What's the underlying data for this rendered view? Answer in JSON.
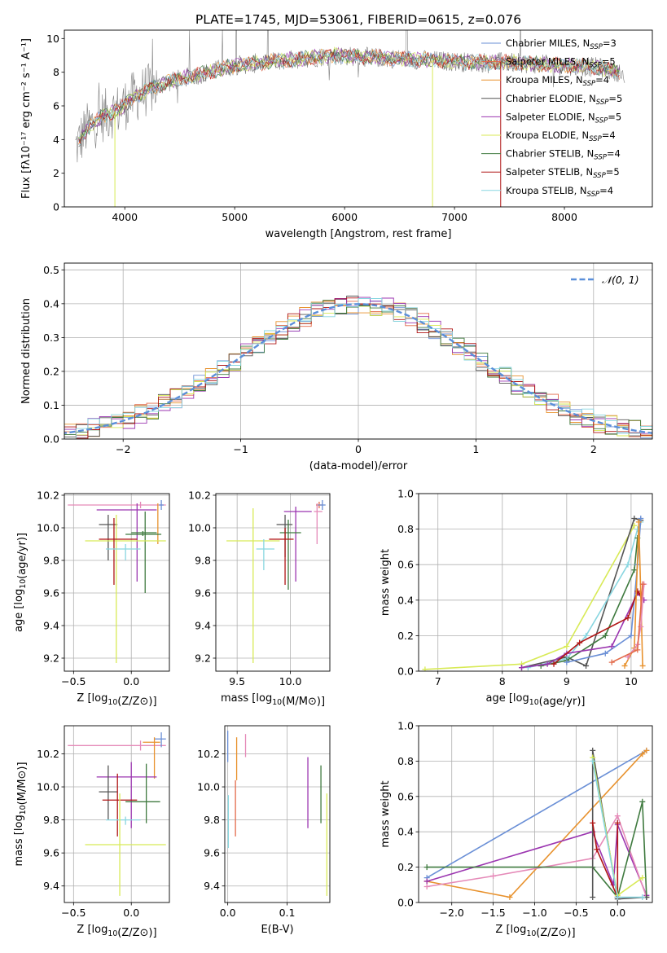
{
  "figure_title": "PLATE=1745, MJD=53061, FIBERID=0615, z=0.076",
  "colors": {
    "chabrier_miles": "#6a8fd6",
    "salpeter_miles": "#e36b4b",
    "kroupa_miles": "#e8922e",
    "chabrier_elodie": "#555555",
    "salpeter_elodie": "#9b35b0",
    "kroupa_elodie": "#d8ea56",
    "chabrier_stelib": "#3f7a3f",
    "salpeter_stelib": "#b01515",
    "kroupa_stelib": "#88d6e0",
    "data": "#7f7f7f",
    "pink": "#e58ab8",
    "gaussian": "#5b8fd9"
  },
  "chart_data": [
    {
      "type": "line",
      "xlabel": "wavelength [Angstrom, rest frame]",
      "ylabel": "Flux [fλ10⁻¹⁷ erg cm⁻² s⁻¹ A⁻¹]",
      "xlim": [
        3450,
        8800
      ],
      "ylim": [
        0,
        10.5
      ],
      "xticks": [
        "4000",
        "5000",
        "6000",
        "7000",
        "8000"
      ],
      "yticks": [
        "0",
        "2",
        "4",
        "6",
        "8",
        "10"
      ],
      "grid": false,
      "legend_position": "right",
      "legend": [
        {
          "label": "Chabrier MILES, N",
          "sub": "SSP",
          "tail": "=3"
        },
        {
          "label": "Salpeter MILES, N",
          "sub": "SSP",
          "tail": "=5"
        },
        {
          "label": "Kroupa MILES, N",
          "sub": "SSP",
          "tail": "=4"
        },
        {
          "label": "Chabrier ELODIE, N",
          "sub": "SSP",
          "tail": "=5"
        },
        {
          "label": "Salpeter ELODIE, N",
          "sub": "SSP",
          "tail": "=5"
        },
        {
          "label": "Kroupa ELODIE, N",
          "sub": "SSP",
          "tail": "=4"
        },
        {
          "label": "Chabrier STELIB, N",
          "sub": "SSP",
          "tail": "=4"
        },
        {
          "label": "Salpeter STELIB, N",
          "sub": "SSP",
          "tail": "=5"
        },
        {
          "label": "Kroupa STELIB, N",
          "sub": "SSP",
          "tail": "=4"
        }
      ],
      "continuum": {
        "x": [
          3550,
          3650,
          3800,
          3950,
          4100,
          4300,
          4500,
          4700,
          5000,
          5300,
          5600,
          5900,
          6200,
          6500,
          6800,
          7100,
          7400,
          7700,
          8000,
          8300,
          8500,
          8550
        ],
        "y": [
          3.5,
          4.6,
          5.4,
          5.8,
          6.6,
          7.2,
          7.6,
          7.9,
          8.4,
          8.6,
          8.8,
          9.0,
          8.9,
          8.8,
          8.7,
          8.6,
          8.6,
          8.5,
          8.4,
          8.3,
          8.0,
          7.3
        ]
      }
    },
    {
      "type": "line",
      "xlabel": "(data-model)/error",
      "ylabel": "Normed distribution",
      "xlim": [
        -2.5,
        2.5
      ],
      "ylim": [
        0,
        0.52
      ],
      "xticks": [
        "−2",
        "−1",
        "0",
        "1",
        "2"
      ],
      "yticks": [
        "0.0",
        "0.1",
        "0.2",
        "0.3",
        "0.4",
        "0.5"
      ],
      "grid": true,
      "legend_position": "top-right",
      "gaussian_label": "𝒩(0, 1)",
      "bin_width": 0.1
    },
    {
      "type": "scatter",
      "xlabel": "Z [log10(Z/Z⊙)]",
      "ylabel": "age  [log10(age/yr)]",
      "xlim": [
        -0.58,
        0.33
      ],
      "ylim": [
        9.12,
        10.21
      ],
      "xticks": [
        "−0.5",
        "0.0"
      ],
      "yticks": [
        "9.2",
        "9.4",
        "9.6",
        "9.8",
        "10.0",
        "10.2"
      ],
      "grid": true
    },
    {
      "type": "scatter",
      "xlabel": "mass [log10(M/M⊙)]",
      "ylabel": "",
      "xlim": [
        9.3,
        10.37
      ],
      "ylim": [
        9.12,
        10.21
      ],
      "xticks": [
        "9.5",
        "10.0"
      ],
      "yticks": [
        "9.2",
        "9.4",
        "9.6",
        "9.8",
        "10.0",
        "10.2"
      ],
      "grid": true
    },
    {
      "type": "line",
      "xlabel": "age  [log10(age/yr)]",
      "ylabel": "mass weight",
      "xlim": [
        6.7,
        10.33
      ],
      "ylim": [
        0,
        1.0
      ],
      "xticks": [
        "7",
        "8",
        "9",
        "10"
      ],
      "yticks": [
        "0.0",
        "0.2",
        "0.4",
        "0.6",
        "0.8",
        "1.0"
      ],
      "grid": true
    },
    {
      "type": "scatter",
      "xlabel": "Z [log10(Z/Z⊙)]",
      "ylabel": "mass [log10(M/M⊙)]",
      "xlim": [
        -0.58,
        0.33
      ],
      "ylim": [
        9.3,
        10.37
      ],
      "xticks": [
        "−0.5",
        "0.0"
      ],
      "yticks": [
        "9.4",
        "9.6",
        "9.8",
        "10.0",
        "10.2"
      ],
      "grid": true
    },
    {
      "type": "scatter",
      "xlabel": "E(B-V)",
      "ylabel": "",
      "xlim": [
        -0.005,
        0.172
      ],
      "ylim": [
        9.3,
        10.37
      ],
      "xticks": [
        "0.0",
        "0.1"
      ],
      "yticks": [
        "9.4",
        "9.6",
        "9.8",
        "10.0",
        "10.2"
      ],
      "grid": true
    },
    {
      "type": "line",
      "xlabel": "Z [log10(Z/Z⊙)]",
      "ylabel": "mass weight",
      "xlim": [
        -2.4,
        0.42
      ],
      "ylim": [
        0,
        1.0
      ],
      "xticks": [
        "−2.0",
        "−1.5",
        "−1.0",
        "−0.5",
        "0.0"
      ],
      "yticks": [
        "0.0",
        "0.2",
        "0.4",
        "0.6",
        "0.8",
        "1.0"
      ],
      "grid": true
    }
  ],
  "errorbars_Z_age": [
    {
      "c": "pink",
      "x": 0.08,
      "xl": -0.55,
      "xh": 0.3,
      "y": 10.14,
      "yl": 10.12,
      "yh": 10.16
    },
    {
      "c": "salpeter_elodie",
      "x": 0.05,
      "xl": -0.3,
      "xh": 0.22,
      "y": 10.11,
      "yl": 9.67,
      "yh": 10.15
    },
    {
      "c": "kroupa_miles",
      "x": 0.23,
      "xl": 0.23,
      "xh": 0.23,
      "y": 10.12,
      "yl": 9.9,
      "yh": 10.15
    },
    {
      "c": "chabrier_miles",
      "x": 0.26,
      "xl": 0.24,
      "xh": 0.28,
      "y": 10.14,
      "yl": 10.11,
      "yh": 10.17
    },
    {
      "c": "chabrier_elodie",
      "x": -0.2,
      "xl": -0.28,
      "xh": -0.12,
      "y": 10.02,
      "yl": 9.8,
      "yh": 10.08
    },
    {
      "c": "chabrier_stelib",
      "x": 0.12,
      "xl": 0.0,
      "xh": 0.22,
      "y": 9.97,
      "yl": 9.6,
      "yh": 10.1
    },
    {
      "c": "kroupa_elodie",
      "x": -0.13,
      "xl": -0.4,
      "xh": 0.3,
      "y": 9.92,
      "yl": 9.17,
      "yh": 10.08
    },
    {
      "c": "salpeter_stelib",
      "x": -0.15,
      "xl": -0.28,
      "xh": 0.05,
      "y": 9.93,
      "yl": 9.65,
      "yh": 10.06
    },
    {
      "c": "kroupa_stelib",
      "x": -0.05,
      "xl": -0.22,
      "xh": 0.08,
      "y": 9.87,
      "yl": 9.8,
      "yh": 9.9
    },
    {
      "c": "chabrier_stelib",
      "x": 0.1,
      "xl": -0.05,
      "xh": 0.26,
      "y": 9.96,
      "yl": 9.95,
      "yh": 9.98
    }
  ],
  "errorbars_mass_age": [
    {
      "c": "salpeter_miles",
      "x": 10.27,
      "xl": 10.24,
      "xh": 10.3,
      "y": 10.14,
      "yl": 10.12,
      "yh": 10.16
    },
    {
      "c": "chabrier_miles",
      "x": 10.3,
      "xl": 10.26,
      "xh": 10.33,
      "y": 10.14,
      "yl": 10.11,
      "yh": 10.17
    },
    {
      "c": "pink",
      "x": 10.25,
      "xl": 10.22,
      "xh": 10.3,
      "y": 10.1,
      "yl": 9.9,
      "yh": 10.15
    },
    {
      "c": "salpeter_elodie",
      "x": 10.05,
      "xl": 9.94,
      "xh": 10.2,
      "y": 10.1,
      "yl": 9.67,
      "yh": 10.13
    },
    {
      "c": "chabrier_elodie",
      "x": 9.95,
      "xl": 9.87,
      "xh": 10.02,
      "y": 10.02,
      "yl": 9.82,
      "yh": 10.08
    },
    {
      "c": "chabrier_stelib",
      "x": 9.98,
      "xl": 9.9,
      "xh": 10.1,
      "y": 9.97,
      "yl": 9.62,
      "yh": 10.05
    },
    {
      "c": "salpeter_stelib",
      "x": 9.95,
      "xl": 9.8,
      "xh": 10.03,
      "y": 9.93,
      "yl": 9.65,
      "yh": 10.0
    },
    {
      "c": "kroupa_elodie",
      "x": 9.65,
      "xl": 9.4,
      "xh": 9.9,
      "y": 9.92,
      "yl": 9.17,
      "yh": 10.12
    },
    {
      "c": "kroupa_stelib",
      "x": 9.75,
      "xl": 9.68,
      "xh": 9.85,
      "y": 9.87,
      "yl": 9.74,
      "yh": 9.93
    }
  ],
  "errorbars_Z_mass": [
    {
      "c": "pink",
      "x": 0.08,
      "xl": -0.55,
      "xh": 0.3,
      "y": 10.25,
      "yl": 10.22,
      "yh": 10.28
    },
    {
      "c": "chabrier_miles",
      "x": 0.26,
      "xl": 0.2,
      "xh": 0.3,
      "y": 10.29,
      "yl": 10.24,
      "yh": 10.33
    },
    {
      "c": "kroupa_miles",
      "x": 0.2,
      "xl": 0.1,
      "xh": 0.25,
      "y": 10.27,
      "yl": 10.05,
      "yh": 10.3
    },
    {
      "c": "salpeter_elodie",
      "x": 0.0,
      "xl": -0.3,
      "xh": 0.22,
      "y": 10.06,
      "yl": 9.75,
      "yh": 10.15
    },
    {
      "c": "chabrier_elodie",
      "x": -0.2,
      "xl": -0.28,
      "xh": -0.12,
      "y": 9.97,
      "yl": 9.8,
      "yh": 10.13
    },
    {
      "c": "salpeter_stelib",
      "x": -0.12,
      "xl": -0.25,
      "xh": 0.05,
      "y": 9.92,
      "yl": 9.7,
      "yh": 10.08
    },
    {
      "c": "chabrier_stelib",
      "x": 0.13,
      "xl": -0.05,
      "xh": 0.25,
      "y": 9.91,
      "yl": 9.78,
      "yh": 10.14
    },
    {
      "c": "kroupa_stelib",
      "x": -0.05,
      "xl": -0.22,
      "xh": 0.08,
      "y": 9.8,
      "yl": 9.77,
      "yh": 9.82
    },
    {
      "c": "kroupa_elodie",
      "x": -0.1,
      "xl": -0.4,
      "xh": 0.3,
      "y": 9.65,
      "yl": 9.34,
      "yh": 9.96
    }
  ],
  "errorbars_ebv_mass": [
    {
      "c": "chabrier_miles",
      "x": 0.0,
      "xl": 0.0,
      "xh": 0.0,
      "y": 10.25,
      "yl": 10.15,
      "yh": 10.34
    },
    {
      "c": "salpeter_miles",
      "x": 0.013,
      "xl": 0.013,
      "xh": 0.013,
      "y": 9.8,
      "yl": 9.7,
      "yh": 10.04
    },
    {
      "c": "kroupa_miles",
      "x": 0.015,
      "xl": 0.015,
      "xh": 0.015,
      "y": 10.18,
      "yl": 10.04,
      "yh": 10.3
    },
    {
      "c": "pink",
      "x": 0.03,
      "xl": 0.03,
      "xh": 0.03,
      "y": 10.25,
      "yl": 10.18,
      "yh": 10.32
    },
    {
      "c": "kroupa_stelib",
      "x": 0.001,
      "xl": 0.001,
      "xh": 0.001,
      "y": 9.75,
      "yl": 9.63,
      "yh": 9.95
    },
    {
      "c": "salpeter_elodie",
      "x": 0.135,
      "xl": 0.135,
      "xh": 0.135,
      "y": 10.0,
      "yl": 9.75,
      "yh": 10.18
    },
    {
      "c": "chabrier_stelib",
      "x": 0.157,
      "xl": 0.157,
      "xh": 0.157,
      "y": 9.95,
      "yl": 9.78,
      "yh": 10.13
    },
    {
      "c": "kroupa_elodie",
      "x": 0.167,
      "xl": 0.167,
      "xh": 0.167,
      "y": 9.65,
      "yl": 9.34,
      "yh": 9.96
    }
  ],
  "weights_age": [
    {
      "c": "kroupa_elodie",
      "pts": [
        [
          6.8,
          0.01
        ],
        [
          8.3,
          0.04
        ],
        [
          9.0,
          0.14
        ],
        [
          10.05,
          0.82
        ]
      ]
    },
    {
      "c": "chabrier_elodie",
      "pts": [
        [
          8.3,
          0.02
        ],
        [
          9.0,
          0.08
        ],
        [
          9.3,
          0.03
        ],
        [
          10.05,
          0.86
        ],
        [
          10.15,
          0.85
        ]
      ]
    },
    {
      "c": "kroupa_stelib",
      "pts": [
        [
          8.4,
          0.02
        ],
        [
          9.0,
          0.07
        ],
        [
          9.3,
          0.2
        ],
        [
          9.95,
          0.6
        ],
        [
          10.1,
          0.8
        ],
        [
          10.15,
          0.84
        ]
      ]
    },
    {
      "c": "chabrier_stelib",
      "pts": [
        [
          8.6,
          0.03
        ],
        [
          9.0,
          0.06
        ],
        [
          9.6,
          0.2
        ],
        [
          10.05,
          0.57
        ],
        [
          10.1,
          0.75
        ]
      ]
    },
    {
      "c": "chabrier_miles",
      "pts": [
        [
          9.0,
          0.05
        ],
        [
          9.6,
          0.1
        ],
        [
          10.0,
          0.2
        ],
        [
          10.1,
          0.6
        ],
        [
          10.15,
          0.86
        ]
      ]
    },
    {
      "c": "salpeter_elodie",
      "pts": [
        [
          8.3,
          0.02
        ],
        [
          8.7,
          0.04
        ],
        [
          9.0,
          0.1
        ],
        [
          9.7,
          0.14
        ],
        [
          10.1,
          0.44
        ],
        [
          10.2,
          0.4
        ]
      ]
    },
    {
      "c": "salpeter_stelib",
      "pts": [
        [
          8.8,
          0.04
        ],
        [
          9.2,
          0.16
        ],
        [
          9.95,
          0.3
        ],
        [
          10.1,
          0.45
        ],
        [
          10.15,
          0.43
        ]
      ]
    },
    {
      "c": "kroupa_miles",
      "pts": [
        [
          9.9,
          0.03
        ],
        [
          10.05,
          0.13
        ],
        [
          10.12,
          0.84
        ],
        [
          10.18,
          0.03
        ]
      ]
    },
    {
      "c": "pink",
      "pts": [
        [
          9.95,
          0.08
        ],
        [
          10.1,
          0.15
        ],
        [
          10.15,
          0.25
        ],
        [
          10.2,
          0.49
        ]
      ]
    },
    {
      "c": "salpeter_miles",
      "pts": [
        [
          9.7,
          0.05
        ],
        [
          10.1,
          0.12
        ],
        [
          10.18,
          0.49
        ]
      ]
    }
  ],
  "weights_Z": [
    {
      "c": "chabrier_miles",
      "pts": [
        [
          -2.3,
          0.14
        ],
        [
          0.35,
          0.86
        ]
      ]
    },
    {
      "c": "kroupa_miles",
      "pts": [
        [
          -2.3,
          0.12
        ],
        [
          -1.3,
          0.03
        ],
        [
          0.3,
          0.84
        ],
        [
          0.35,
          0.86
        ]
      ]
    },
    {
      "c": "salpeter_elodie",
      "pts": [
        [
          -2.3,
          0.12
        ],
        [
          -0.3,
          0.4
        ],
        [
          -0.05,
          0.1
        ],
        [
          0.0,
          0.44
        ],
        [
          0.35,
          0.04
        ]
      ]
    },
    {
      "c": "pink",
      "pts": [
        [
          -2.3,
          0.09
        ],
        [
          -1.5,
          0.15
        ],
        [
          -0.3,
          0.25
        ],
        [
          0.0,
          0.49
        ],
        [
          0.35,
          0.03
        ]
      ]
    },
    {
      "c": "chabrier_stelib",
      "pts": [
        [
          -2.3,
          0.2
        ],
        [
          -0.3,
          0.2
        ],
        [
          0.0,
          0.03
        ],
        [
          0.3,
          0.57
        ],
        [
          0.35,
          0.03
        ]
      ]
    },
    {
      "c": "chabrier_elodie",
      "pts": [
        [
          -0.3,
          0.03
        ],
        [
          -0.3,
          0.86
        ],
        [
          0.0,
          0.02
        ],
        [
          0.35,
          0.03
        ]
      ]
    },
    {
      "c": "salpeter_stelib",
      "pts": [
        [
          -0.3,
          0.45
        ],
        [
          -0.25,
          0.3
        ],
        [
          0.0,
          0.03
        ],
        [
          0.0,
          0.45
        ]
      ]
    },
    {
      "c": "kroupa_elodie",
      "pts": [
        [
          -0.3,
          0.82
        ],
        [
          0.0,
          0.04
        ],
        [
          0.3,
          0.14
        ]
      ]
    },
    {
      "c": "kroupa_stelib",
      "pts": [
        [
          -0.3,
          0.8
        ],
        [
          0.0,
          0.03
        ],
        [
          0.3,
          0.03
        ]
      ]
    }
  ]
}
